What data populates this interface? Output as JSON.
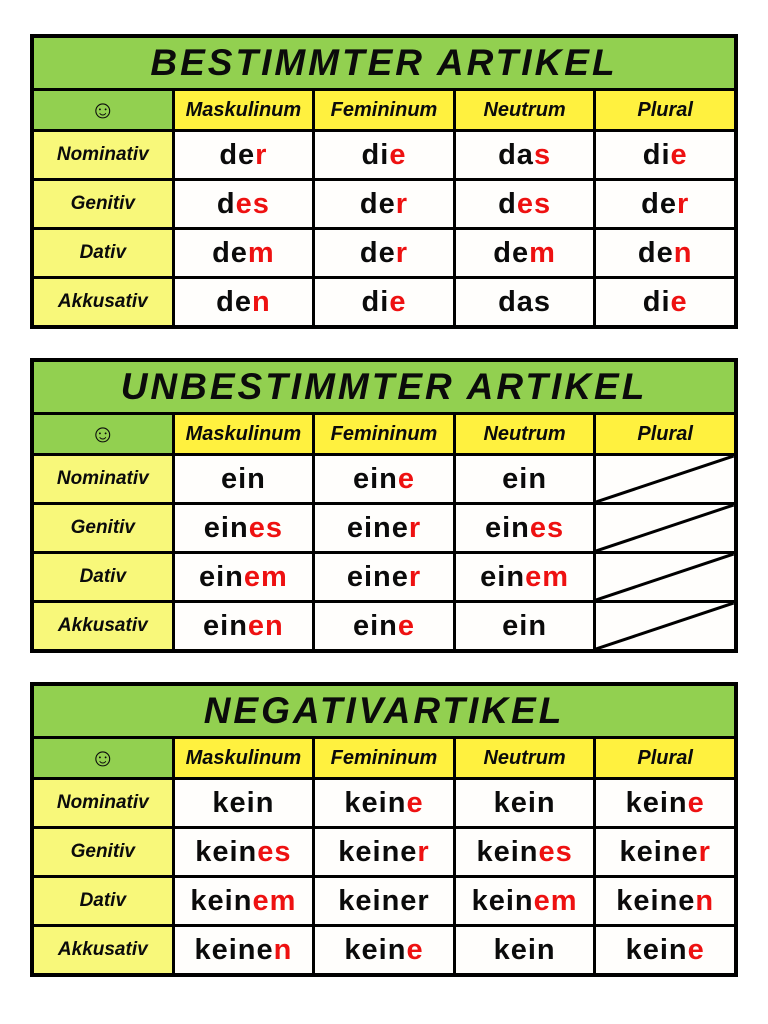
{
  "colors": {
    "green": "#92D050",
    "header_yellow": "#FFF13F",
    "row_yellow": "#F8F87A",
    "red": "#EE1111",
    "border": "#000000"
  },
  "icons": {
    "smiley": "☺"
  },
  "tables": [
    {
      "title": "BESTIMMTER ARTIKEL",
      "columns": [
        "Maskulinum",
        "Femininum",
        "Neutrum",
        "Plural"
      ],
      "rows": [
        {
          "label": "Nominativ",
          "cells": [
            {
              "stem": "de",
              "ending": "r"
            },
            {
              "stem": "di",
              "ending": "e"
            },
            {
              "stem": "da",
              "ending": "s"
            },
            {
              "stem": "di",
              "ending": "e"
            }
          ]
        },
        {
          "label": "Genitiv",
          "cells": [
            {
              "stem": "d",
              "ending": "es"
            },
            {
              "stem": "de",
              "ending": "r"
            },
            {
              "stem": "d",
              "ending": "es"
            },
            {
              "stem": "de",
              "ending": "r"
            }
          ]
        },
        {
          "label": "Dativ",
          "cells": [
            {
              "stem": "de",
              "ending": "m"
            },
            {
              "stem": "de",
              "ending": "r"
            },
            {
              "stem": "de",
              "ending": "m"
            },
            {
              "stem": "de",
              "ending": "n"
            }
          ]
        },
        {
          "label": "Akkusativ",
          "cells": [
            {
              "stem": "de",
              "ending": "n"
            },
            {
              "stem": "di",
              "ending": "e"
            },
            {
              "stem": "das",
              "ending": ""
            },
            {
              "stem": "di",
              "ending": "e"
            }
          ]
        }
      ]
    },
    {
      "title": "UNBESTIMMTER ARTIKEL",
      "columns": [
        "Maskulinum",
        "Femininum",
        "Neutrum",
        "Plural"
      ],
      "rows": [
        {
          "label": "Nominativ",
          "cells": [
            {
              "stem": "ein",
              "ending": ""
            },
            {
              "stem": "ein",
              "ending": "e"
            },
            {
              "stem": "ein",
              "ending": ""
            },
            {
              "slash": true
            }
          ]
        },
        {
          "label": "Genitiv",
          "cells": [
            {
              "stem": "ein",
              "ending": "es"
            },
            {
              "stem": "eine",
              "ending": "r"
            },
            {
              "stem": "ein",
              "ending": "es"
            },
            {
              "slash": true
            }
          ]
        },
        {
          "label": "Dativ",
          "cells": [
            {
              "stem": "ein",
              "ending": "em"
            },
            {
              "stem": "eine",
              "ending": "r"
            },
            {
              "stem": "ein",
              "ending": "em"
            },
            {
              "slash": true
            }
          ]
        },
        {
          "label": "Akkusativ",
          "cells": [
            {
              "stem": "ein",
              "ending": "en"
            },
            {
              "stem": "ein",
              "ending": "e"
            },
            {
              "stem": "ein",
              "ending": ""
            },
            {
              "slash": true
            }
          ]
        }
      ]
    },
    {
      "title": "NEGATIVARTIKEL",
      "columns": [
        "Maskulinum",
        "Femininum",
        "Neutrum",
        "Plural"
      ],
      "rows": [
        {
          "label": "Nominativ",
          "cells": [
            {
              "stem": "kein",
              "ending": ""
            },
            {
              "stem": "kein",
              "ending": "e"
            },
            {
              "stem": "kein",
              "ending": ""
            },
            {
              "stem": "kein",
              "ending": "e"
            }
          ]
        },
        {
          "label": "Genitiv",
          "cells": [
            {
              "stem": "kein",
              "ending": "es"
            },
            {
              "stem": "keine",
              "ending": "r"
            },
            {
              "stem": "kein",
              "ending": "es"
            },
            {
              "stem": "keine",
              "ending": "r"
            }
          ]
        },
        {
          "label": "Dativ",
          "cells": [
            {
              "stem": "kein",
              "ending": "em"
            },
            {
              "stem": "keiner",
              "ending": ""
            },
            {
              "stem": "kein",
              "ending": "em"
            },
            {
              "stem": "keine",
              "ending": "n"
            }
          ]
        },
        {
          "label": "Akkusativ",
          "cells": [
            {
              "stem": "keine",
              "ending": "n"
            },
            {
              "stem": "kein",
              "ending": "e"
            },
            {
              "stem": "kein",
              "ending": ""
            },
            {
              "stem": "kein",
              "ending": "e"
            }
          ]
        }
      ]
    }
  ]
}
